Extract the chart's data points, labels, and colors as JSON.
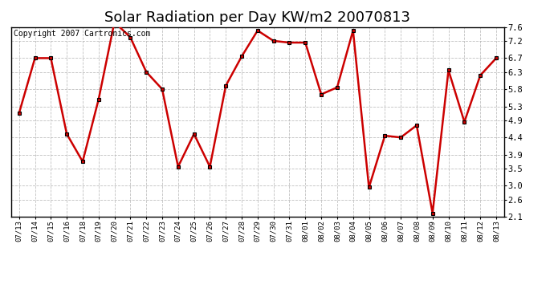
{
  "title": "Solar Radiation per Day KW/m2 20070813",
  "copyright": "Copyright 2007 Cartronics.com",
  "labels": [
    "07/13",
    "07/14",
    "07/15",
    "07/16",
    "07/18",
    "07/19",
    "07/20",
    "07/21",
    "07/22",
    "07/23",
    "07/24",
    "07/25",
    "07/26",
    "07/27",
    "07/28",
    "07/29",
    "07/30",
    "07/31",
    "08/01",
    "08/02",
    "08/03",
    "08/04",
    "08/05",
    "08/06",
    "08/07",
    "08/08",
    "08/09",
    "08/10",
    "08/11",
    "08/12",
    "08/13"
  ],
  "values": [
    5.1,
    6.7,
    6.7,
    4.5,
    3.7,
    5.5,
    7.75,
    7.3,
    6.3,
    5.8,
    3.55,
    4.5,
    3.55,
    5.9,
    6.75,
    7.5,
    7.2,
    7.15,
    7.15,
    5.65,
    5.85,
    7.5,
    2.95,
    4.45,
    4.4,
    4.75,
    2.2,
    6.35,
    4.85,
    6.2,
    6.7
  ],
  "line_color": "#cc0000",
  "marker_color": "#000000",
  "bg_color": "#ffffff",
  "grid_color": "#b0b0b0",
  "ylim": [
    2.1,
    7.6
  ],
  "yticks": [
    2.1,
    2.6,
    3.0,
    3.5,
    3.9,
    4.4,
    4.9,
    5.3,
    5.8,
    6.3,
    6.7,
    7.2,
    7.6
  ],
  "title_fontsize": 13,
  "copyright_fontsize": 7
}
